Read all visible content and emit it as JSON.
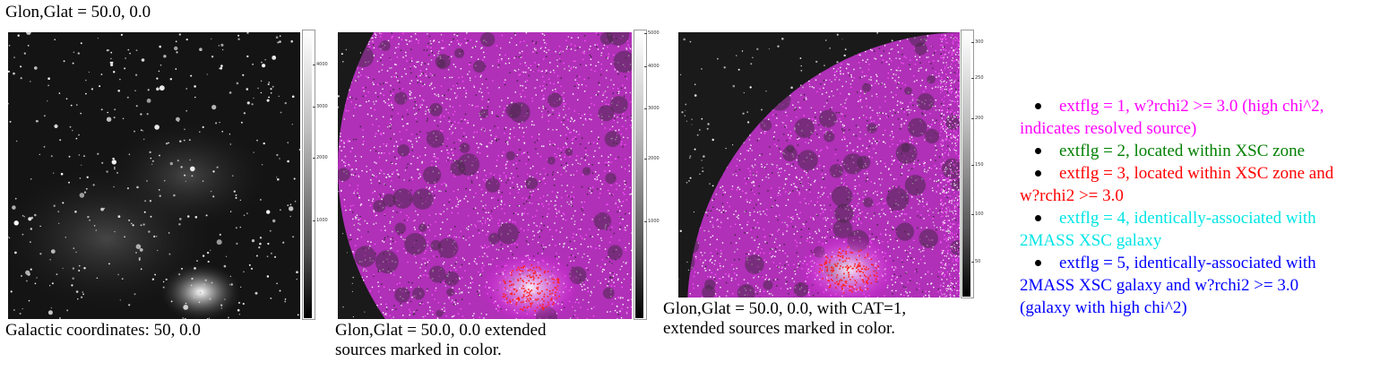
{
  "heading": "Glon,Glat = 50.0, 0.0",
  "panels": [
    {
      "caption_lines": [
        "Galactic coordinates: 50, 0.0"
      ],
      "colorbar_ticks": [
        "4000",
        "3000",
        "2000",
        "1000"
      ]
    },
    {
      "caption_lines": [
        "Glon,Glat = 50.0, 0.0 extended",
        "sources marked in color."
      ],
      "colorbar_ticks": [
        "5000",
        "4000",
        "3000",
        "2000",
        "1000"
      ]
    },
    {
      "caption_lines": [
        "Glon,Glat = 50.0, 0.0, with CAT=1,",
        "extended sources marked in color."
      ],
      "colorbar_ticks": [
        "300",
        "250",
        "200",
        "150",
        "100",
        "50"
      ]
    }
  ],
  "legend": [
    {
      "lines": [
        "extflg = 1, w?rchi2 >= 3.0 (high chi^2,",
        "indicates resolved source)"
      ],
      "color": "#ff00ff"
    },
    {
      "lines": [
        "extflg = 2, located within XSC zone"
      ],
      "color": "#008000"
    },
    {
      "lines": [
        "extflg = 3, located within XSC zone and",
        "w?rchi2 >= 3.0"
      ],
      "color": "#ff0000"
    },
    {
      "lines": [
        "extflg = 4, identically-associated with",
        "2MASS XSC galaxy"
      ],
      "color": "#00e5e5"
    },
    {
      "lines": [
        "extflg = 5, identically-associated with",
        "2MASS XSC galaxy and w?rchi2 >= 3.0",
        "(galaxy with high chi^2)"
      ],
      "color": "#0000ff"
    }
  ]
}
